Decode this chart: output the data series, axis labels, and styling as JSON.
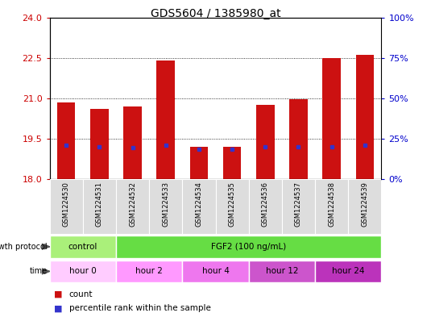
{
  "title": "GDS5604 / 1385980_at",
  "samples": [
    "GSM1224530",
    "GSM1224531",
    "GSM1224532",
    "GSM1224533",
    "GSM1224534",
    "GSM1224535",
    "GSM1224536",
    "GSM1224537",
    "GSM1224538",
    "GSM1224539"
  ],
  "bar_tops": [
    20.85,
    20.6,
    20.7,
    22.4,
    19.2,
    19.2,
    20.75,
    20.95,
    22.5,
    22.6
  ],
  "bar_base": 18.0,
  "blue_marker_values": [
    19.25,
    19.2,
    19.15,
    19.25,
    19.1,
    19.1,
    19.2,
    19.2,
    19.2,
    19.25
  ],
  "ylim_left": [
    18,
    24
  ],
  "ylim_right": [
    0,
    100
  ],
  "yticks_left": [
    18,
    19.5,
    21,
    22.5,
    24
  ],
  "yticks_right": [
    0,
    25,
    50,
    75,
    100
  ],
  "bar_color": "#cc1111",
  "blue_color": "#3333cc",
  "bar_width": 0.55,
  "grid_yticks": [
    19.5,
    21,
    22.5
  ],
  "growth_protocol_groups": [
    {
      "label": "control",
      "start": 0,
      "end": 2,
      "color": "#aaf07a"
    },
    {
      "label": "FGF2 (100 ng/mL)",
      "start": 2,
      "end": 10,
      "color": "#66dd44"
    }
  ],
  "time_groups": [
    {
      "label": "hour 0",
      "start": 0,
      "end": 2,
      "color": "#ffccff"
    },
    {
      "label": "hour 2",
      "start": 2,
      "end": 4,
      "color": "#ff99ff"
    },
    {
      "label": "hour 4",
      "start": 4,
      "end": 6,
      "color": "#ee77ee"
    },
    {
      "label": "hour 12",
      "start": 6,
      "end": 8,
      "color": "#cc55cc"
    },
    {
      "label": "hour 24",
      "start": 8,
      "end": 10,
      "color": "#bb33bb"
    }
  ],
  "sample_bg_color": "#dddddd",
  "legend_count_color": "#cc1111",
  "legend_pct_color": "#3333cc",
  "background_color": "#ffffff",
  "plot_bg": "#ffffff",
  "tick_color_left": "#cc0000",
  "tick_color_right": "#0000cc"
}
